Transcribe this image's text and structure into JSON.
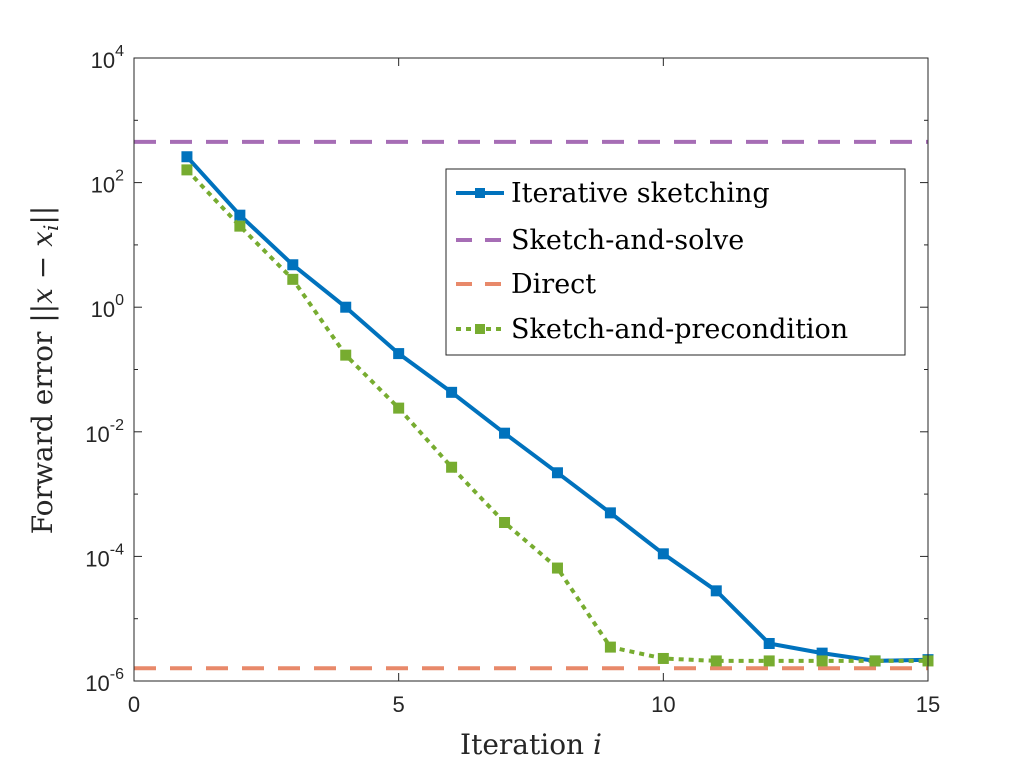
{
  "chart_data": {
    "type": "line",
    "xlabel": "Iteration i",
    "ylabel": "Forward error ||x − x_i||",
    "xlim": [
      0,
      15
    ],
    "ylim": [
      1e-06,
      10000.0
    ],
    "yscale": "log",
    "grid": false,
    "box": true,
    "legend_position": "top-right",
    "x_ticks": [
      0,
      5,
      10,
      15
    ],
    "y_ticks": [
      {
        "value": 10000.0,
        "base": "10",
        "exp": "4"
      },
      {
        "value": 100.0,
        "base": "10",
        "exp": "2"
      },
      {
        "value": 1.0,
        "base": "10",
        "exp": "0"
      },
      {
        "value": 0.01,
        "base": "10",
        "exp": "-2"
      },
      {
        "value": 0.0001,
        "base": "10",
        "exp": "-4"
      },
      {
        "value": 1e-06,
        "base": "10",
        "exp": "-6"
      }
    ],
    "series": [
      {
        "name": "Iterative sketching",
        "color": "#0072BD",
        "style": "solid",
        "marker": "square",
        "x": [
          1,
          2,
          3,
          4,
          5,
          6,
          7,
          8,
          9,
          10,
          11,
          12,
          13,
          14,
          15
        ],
        "y": [
          260,
          30,
          4.8,
          1.0,
          0.18,
          0.043,
          0.0095,
          0.0022,
          0.0005,
          0.00011,
          2.8e-05,
          4e-06,
          2.8e-06,
          2.1e-06,
          2.2e-06
        ]
      },
      {
        "name": "Sketch-and-solve",
        "color": "#A66DB5",
        "style": "dashed",
        "marker": "none",
        "x": [
          0,
          15
        ],
        "y": [
          450,
          450
        ]
      },
      {
        "name": "Direct",
        "color": "#E8896A",
        "style": "dashed",
        "marker": "none",
        "x": [
          0,
          15
        ],
        "y": [
          1.6e-06,
          1.6e-06
        ]
      },
      {
        "name": "Sketch-and-precondition",
        "color": "#77AC30",
        "style": "dotted",
        "marker": "square",
        "x": [
          1,
          2,
          3,
          4,
          5,
          6,
          7,
          8,
          9,
          10,
          11,
          12,
          13,
          14,
          15
        ],
        "y": [
          160,
          20,
          2.8,
          0.17,
          0.024,
          0.0027,
          0.00035,
          6.5e-05,
          3.5e-06,
          2.3e-06,
          2.1e-06,
          2.1e-06,
          2.1e-06,
          2.1e-06,
          2.1e-06
        ]
      }
    ]
  }
}
